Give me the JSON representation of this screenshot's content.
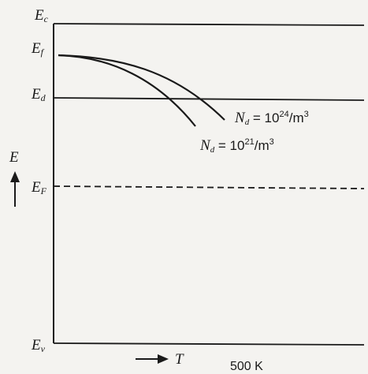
{
  "levels": {
    "ec": {
      "main": "E",
      "sub": "c"
    },
    "ef": {
      "main": "E",
      "sub": "f"
    },
    "ed": {
      "main": "E",
      "sub": "d"
    },
    "eF": {
      "main": "E",
      "sub": "F"
    },
    "ev": {
      "main": "E",
      "sub": "v"
    }
  },
  "axes": {
    "y_label": "E",
    "x_label": "T",
    "temperature_mark": "500 K"
  },
  "curves": [
    {
      "n": "N",
      "n_sub": "d",
      "eq": " = 10",
      "exp": "24",
      "unit": "/m",
      "unit_exp": "3"
    },
    {
      "n": "N",
      "n_sub": "d",
      "eq": " = 10",
      "exp": "21",
      "unit": "/m",
      "unit_exp": "3"
    }
  ],
  "colors": {
    "ink": "#1a1a1a",
    "paper": "#f4f3f0"
  }
}
